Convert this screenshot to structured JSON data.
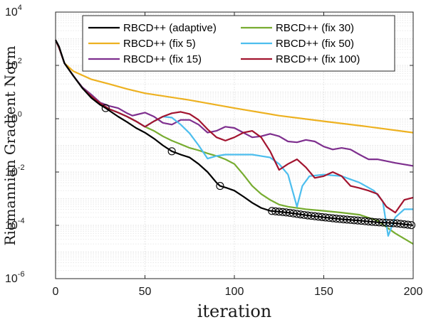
{
  "chart_data": {
    "type": "line",
    "title": "",
    "xlabel": "iteration",
    "ylabel": "Riemannian Gradient Norm",
    "xlim": [
      0,
      200
    ],
    "ylim": [
      1e-06,
      10000.0
    ],
    "yscale": "log",
    "grid": true,
    "legend_position": "top-right",
    "x_ticks": [
      "0",
      "50",
      "100",
      "150",
      "200"
    ],
    "y_ticks": [
      {
        "base": "10",
        "exp": "4",
        "value": 10000
      },
      {
        "base": "10",
        "exp": "2",
        "value": 100
      },
      {
        "base": "10",
        "exp": "0",
        "value": 1
      },
      {
        "base": "10",
        "exp": "-2",
        "value": 0.01
      },
      {
        "base": "10",
        "exp": "-4",
        "value": 0.0001
      },
      {
        "base": "10",
        "exp": "-6",
        "value": 1e-06
      }
    ],
    "series": [
      {
        "name": "RBCD++ (adaptive)",
        "color": "#000000",
        "points": [
          [
            0,
            900
          ],
          [
            2,
            500
          ],
          [
            5,
            120
          ],
          [
            10,
            40
          ],
          [
            15,
            14
          ],
          [
            20,
            6
          ],
          [
            25,
            3.3
          ],
          [
            28,
            2.5
          ],
          [
            35,
            1.2
          ],
          [
            40,
            0.75
          ],
          [
            45,
            0.45
          ],
          [
            50,
            0.3
          ],
          [
            55,
            0.18
          ],
          [
            60,
            0.1
          ],
          [
            65,
            0.06
          ],
          [
            70,
            0.045
          ],
          [
            75,
            0.035
          ],
          [
            80,
            0.02
          ],
          [
            85,
            0.01
          ],
          [
            90,
            0.004
          ],
          [
            92,
            0.003
          ],
          [
            96,
            0.0025
          ],
          [
            100,
            0.002
          ],
          [
            105,
            0.0012
          ],
          [
            110,
            0.0007
          ],
          [
            115,
            0.00045
          ],
          [
            120,
            0.00035
          ],
          [
            130,
            0.0003
          ],
          [
            140,
            0.00024
          ],
          [
            150,
            0.0002
          ],
          [
            160,
            0.00017
          ],
          [
            170,
            0.00015
          ],
          [
            180,
            0.00013
          ],
          [
            190,
            0.00012
          ],
          [
            200,
            0.0001
          ]
        ],
        "markers": [
          28,
          65,
          92,
          121,
          123,
          125,
          127,
          129,
          131,
          133,
          135,
          137,
          139,
          141,
          143,
          145,
          147,
          149,
          151,
          153,
          155,
          157,
          159,
          161,
          163,
          165,
          167,
          169,
          171,
          173,
          175,
          177,
          179,
          181,
          183,
          185,
          187,
          189,
          191,
          193,
          195,
          197,
          199
        ]
      },
      {
        "name": "RBCD++ (fix 5)",
        "color": "#EDB120",
        "points": [
          [
            0,
            900
          ],
          [
            2,
            450
          ],
          [
            5,
            120
          ],
          [
            10,
            60
          ],
          [
            20,
            30
          ],
          [
            30,
            20
          ],
          [
            40,
            13
          ],
          [
            50,
            9
          ],
          [
            75,
            5
          ],
          [
            100,
            2.5
          ],
          [
            125,
            1.3
          ],
          [
            150,
            0.8
          ],
          [
            175,
            0.5
          ],
          [
            200,
            0.3
          ]
        ]
      },
      {
        "name": "RBCD++ (fix 15)",
        "color": "#7E2F8E",
        "points": [
          [
            0,
            900
          ],
          [
            2,
            450
          ],
          [
            5,
            120
          ],
          [
            10,
            40
          ],
          [
            15,
            15
          ],
          [
            20,
            8
          ],
          [
            25,
            4
          ],
          [
            30,
            3
          ],
          [
            35,
            2.5
          ],
          [
            40,
            1.6
          ],
          [
            43,
            1.3
          ],
          [
            45,
            1.4
          ],
          [
            50,
            1.7
          ],
          [
            55,
            1.2
          ],
          [
            60,
            0.7
          ],
          [
            65,
            0.6
          ],
          [
            70,
            0.9
          ],
          [
            75,
            0.9
          ],
          [
            80,
            0.6
          ],
          [
            85,
            0.3
          ],
          [
            90,
            0.35
          ],
          [
            95,
            0.5
          ],
          [
            100,
            0.45
          ],
          [
            105,
            0.3
          ],
          [
            110,
            0.2
          ],
          [
            115,
            0.22
          ],
          [
            120,
            0.27
          ],
          [
            125,
            0.22
          ],
          [
            130,
            0.14
          ],
          [
            135,
            0.13
          ],
          [
            140,
            0.16
          ],
          [
            145,
            0.14
          ],
          [
            150,
            0.09
          ],
          [
            155,
            0.07
          ],
          [
            160,
            0.08
          ],
          [
            165,
            0.07
          ],
          [
            170,
            0.045
          ],
          [
            175,
            0.03
          ],
          [
            180,
            0.03
          ],
          [
            190,
            0.022
          ],
          [
            200,
            0.017
          ]
        ]
      },
      {
        "name": "RBCD++ (fix 30)",
        "color": "#77AC30",
        "points": [
          [
            0,
            900
          ],
          [
            2,
            450
          ],
          [
            5,
            120
          ],
          [
            10,
            40
          ],
          [
            15,
            14
          ],
          [
            20,
            7
          ],
          [
            25,
            3.8
          ],
          [
            30,
            2.3
          ],
          [
            35,
            1.7
          ],
          [
            40,
            1.2
          ],
          [
            45,
            0.8
          ],
          [
            50,
            0.5
          ],
          [
            55,
            0.35
          ],
          [
            60,
            0.22
          ],
          [
            65,
            0.15
          ],
          [
            70,
            0.11
          ],
          [
            75,
            0.08
          ],
          [
            80,
            0.065
          ],
          [
            85,
            0.05
          ],
          [
            90,
            0.04
          ],
          [
            95,
            0.03
          ],
          [
            100,
            0.02
          ],
          [
            105,
            0.008
          ],
          [
            110,
            0.003
          ],
          [
            115,
            0.0015
          ],
          [
            120,
            0.0009
          ],
          [
            125,
            0.0006
          ],
          [
            130,
            0.0005
          ],
          [
            140,
            0.0004
          ],
          [
            150,
            0.00035
          ],
          [
            160,
            0.0003
          ],
          [
            170,
            0.00025
          ],
          [
            180,
            0.00015
          ],
          [
            190,
            5e-05
          ],
          [
            200,
            2e-05
          ]
        ]
      },
      {
        "name": "RBCD++ (fix 50)",
        "color": "#4DBEEE",
        "points": [
          [
            0,
            900
          ],
          [
            2,
            450
          ],
          [
            5,
            120
          ],
          [
            10,
            40
          ],
          [
            15,
            14
          ],
          [
            20,
            7
          ],
          [
            25,
            3.8
          ],
          [
            30,
            2.3
          ],
          [
            35,
            1.7
          ],
          [
            40,
            1.2
          ],
          [
            45,
            0.8
          ],
          [
            50,
            0.5
          ],
          [
            55,
            0.8
          ],
          [
            60,
            1.2
          ],
          [
            65,
            1.1
          ],
          [
            70,
            0.6
          ],
          [
            75,
            0.28
          ],
          [
            80,
            0.1
          ],
          [
            85,
            0.032
          ],
          [
            90,
            0.04
          ],
          [
            95,
            0.045
          ],
          [
            100,
            0.045
          ],
          [
            110,
            0.045
          ],
          [
            120,
            0.035
          ],
          [
            125,
            0.02
          ],
          [
            130,
            0.008
          ],
          [
            135,
            0.0005
          ],
          [
            138,
            0.003
          ],
          [
            142,
            0.007
          ],
          [
            150,
            0.008
          ],
          [
            160,
            0.007
          ],
          [
            170,
            0.004
          ],
          [
            178,
            0.002
          ],
          [
            183,
            0.0008
          ],
          [
            186,
            4e-05
          ],
          [
            190,
            0.0002
          ],
          [
            195,
            0.0004
          ],
          [
            200,
            0.0004
          ]
        ]
      },
      {
        "name": "RBCD++ (fix 100)",
        "color": "#A2142F",
        "points": [
          [
            0,
            900
          ],
          [
            2,
            450
          ],
          [
            5,
            120
          ],
          [
            10,
            40
          ],
          [
            15,
            14
          ],
          [
            20,
            7
          ],
          [
            25,
            3.8
          ],
          [
            30,
            2.3
          ],
          [
            35,
            1.7
          ],
          [
            40,
            1.2
          ],
          [
            45,
            0.8
          ],
          [
            50,
            0.5
          ],
          [
            55,
            0.8
          ],
          [
            60,
            1.2
          ],
          [
            65,
            1.6
          ],
          [
            70,
            1.8
          ],
          [
            75,
            1.5
          ],
          [
            80,
            0.9
          ],
          [
            85,
            0.4
          ],
          [
            90,
            0.2
          ],
          [
            95,
            0.15
          ],
          [
            100,
            0.2
          ],
          [
            105,
            0.3
          ],
          [
            110,
            0.35
          ],
          [
            115,
            0.2
          ],
          [
            120,
            0.06
          ],
          [
            125,
            0.012
          ],
          [
            130,
            0.02
          ],
          [
            135,
            0.03
          ],
          [
            140,
            0.015
          ],
          [
            145,
            0.006
          ],
          [
            150,
            0.007
          ],
          [
            155,
            0.01
          ],
          [
            160,
            0.007
          ],
          [
            165,
            0.003
          ],
          [
            170,
            0.0025
          ],
          [
            175,
            0.002
          ],
          [
            180,
            0.0015
          ],
          [
            185,
            0.0005
          ],
          [
            190,
            0.0003
          ],
          [
            195,
            0.0009
          ],
          [
            200,
            0.0011
          ]
        ]
      }
    ]
  }
}
